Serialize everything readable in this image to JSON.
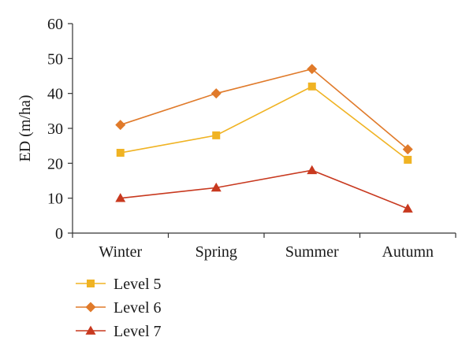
{
  "chart_data": {
    "type": "line",
    "categories": [
      "Winter",
      "Spring",
      "Summer",
      "Autumn"
    ],
    "series": [
      {
        "name": "Level 5",
        "values": [
          23,
          28,
          42,
          21
        ],
        "color": "#f0b323",
        "marker": "square"
      },
      {
        "name": "Level 6",
        "values": [
          31,
          40,
          47,
          24
        ],
        "color": "#e07a2a",
        "marker": "diamond"
      },
      {
        "name": "Level 7",
        "values": [
          10,
          13,
          18,
          7
        ],
        "color": "#c8391f",
        "marker": "triangle"
      }
    ],
    "ylabel": "ED (m/ha)",
    "ylim": [
      0,
      60
    ],
    "yticks": [
      "0",
      "10",
      "20",
      "30",
      "40",
      "50",
      "60"
    ],
    "grid": false,
    "legend_position": "bottom-left"
  }
}
